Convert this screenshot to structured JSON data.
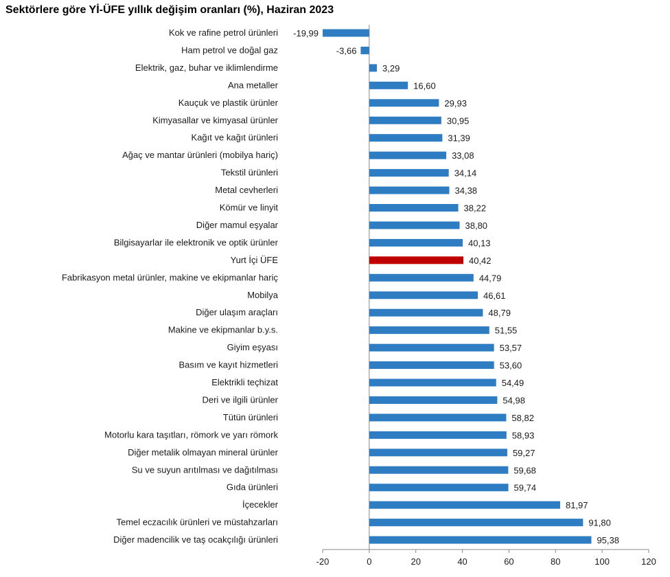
{
  "chart_data": {
    "type": "bar",
    "orientation": "horizontal",
    "title": "Sektörlere göre Yİ-ÜFE yıllık değişim oranları (%), Haziran 2023",
    "xlabel": "",
    "ylabel": "",
    "xlim": [
      -20,
      120
    ],
    "xticks": [
      "-20",
      "0",
      "20",
      "40",
      "60",
      "80",
      "100",
      "120"
    ],
    "grid": false,
    "colors": {
      "default": "#2e7dc2",
      "highlight": "#c00000"
    },
    "highlight_category": "Yurt İçi ÜFE",
    "categories": [
      "Kok ve rafine petrol ürünleri",
      "Ham petrol ve doğal gaz",
      "Elektrik, gaz, buhar ve iklimlendirme",
      "Ana metaller",
      "Kauçuk ve plastik ürünler",
      "Kimyasallar ve kimyasal ürünler",
      "Kağıt ve kağıt ürünleri",
      "Ağaç ve mantar ürünleri (mobilya hariç)",
      "Tekstil ürünleri",
      "Metal cevherleri",
      "Kömür ve linyit",
      "Diğer mamul eşyalar",
      "Bilgisayarlar ile elektronik ve optik ürünler",
      "Yurt İçi ÜFE",
      "Fabrikasyon metal ürünler, makine ve ekipmanlar hariç",
      "Mobilya",
      "Diğer ulaşım araçları",
      "Makine ve ekipmanlar b.y.s.",
      "Giyim eşyası",
      "Basım ve kayıt hizmetleri",
      "Elektrikli teçhizat",
      "Deri ve ilgili ürünler",
      "Tütün ürünleri",
      "Motorlu kara taşıtları, römork ve yarı römork",
      "Diğer metalik olmayan mineral ürünler",
      "Su ve suyun arıtılması ve dağıtılması",
      "Gıda ürünleri",
      "İçecekler",
      "Temel eczacılık ürünleri ve müstahzarları",
      "Diğer madencilik ve taş ocakçılığı ürünleri"
    ],
    "values": [
      -19.99,
      -3.66,
      3.29,
      16.6,
      29.93,
      30.95,
      31.39,
      33.08,
      34.14,
      34.38,
      38.22,
      38.8,
      40.13,
      40.42,
      44.79,
      46.61,
      48.79,
      51.55,
      53.57,
      53.6,
      54.49,
      54.98,
      58.82,
      58.93,
      59.27,
      59.68,
      59.74,
      81.97,
      91.8,
      95.38
    ],
    "value_labels": [
      "-19,99",
      "-3,66",
      "3,29",
      "16,60",
      "29,93",
      "30,95",
      "31,39",
      "33,08",
      "34,14",
      "34,38",
      "38,22",
      "38,80",
      "40,13",
      "40,42",
      "44,79",
      "46,61",
      "48,79",
      "51,55",
      "53,57",
      "53,60",
      "54,49",
      "54,98",
      "58,82",
      "58,93",
      "59,27",
      "59,68",
      "59,74",
      "81,97",
      "91,80",
      "95,38"
    ]
  }
}
